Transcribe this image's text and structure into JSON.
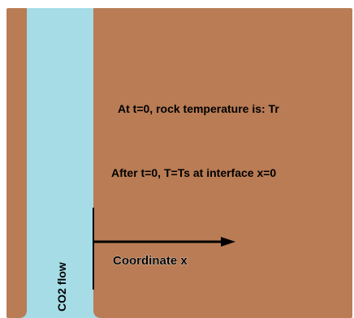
{
  "colors": {
    "rock": "#b97c55",
    "co2": "#a5dce6",
    "background": "#ffffff",
    "ink": "#000000"
  },
  "labels": {
    "initial_condition": "At t=0, rock temperature is: Tr",
    "boundary_condition": "After t=0, T=Ts at interface x=0",
    "coordinate": "Coordinate x",
    "flow": "CO2 flow"
  }
}
